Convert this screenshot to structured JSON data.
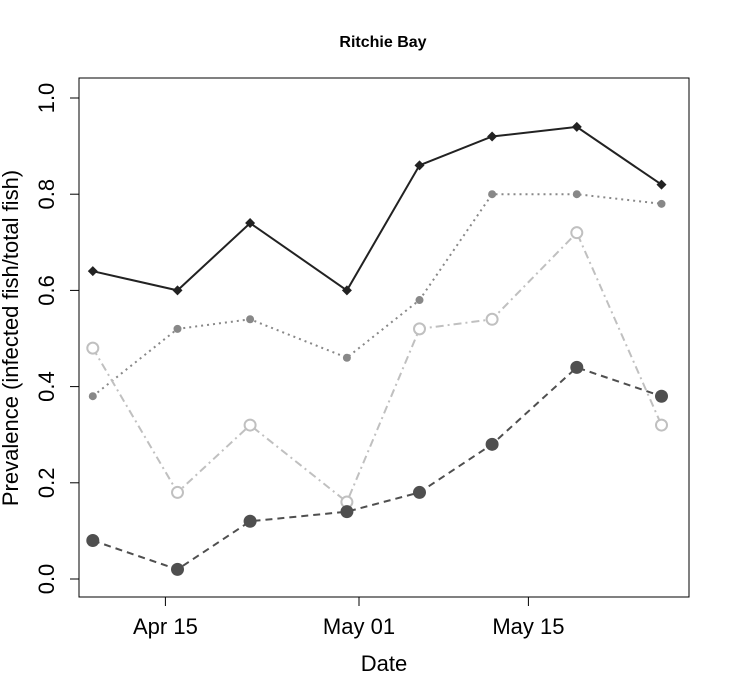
{
  "chart_data": {
    "type": "line",
    "title": "Ritchie Bay",
    "xlabel": "Date",
    "ylabel": "Prevalence (infected fish/total fish)",
    "ylim": [
      0.0,
      1.0
    ],
    "xlim": [
      "2013-04-07",
      "2013-05-29"
    ],
    "x_ticks": [
      {
        "date": "2013-04-15",
        "label": "Apr 15"
      },
      {
        "date": "2013-05-01",
        "label": "May 01"
      },
      {
        "date": "2013-05-15",
        "label": "May 15"
      }
    ],
    "y_ticks": [
      {
        "value": 0.0,
        "label": "0.0"
      },
      {
        "value": 0.2,
        "label": "0.2"
      },
      {
        "value": 0.4,
        "label": "0.4"
      },
      {
        "value": 0.6,
        "label": "0.6"
      },
      {
        "value": 0.8,
        "label": "0.8"
      },
      {
        "value": 1.0,
        "label": "1.0"
      }
    ],
    "grid": false,
    "x": [
      "2013-04-09",
      "2013-04-16",
      "2013-04-22",
      "2013-04-30",
      "2013-05-06",
      "2013-05-12",
      "2013-05-19",
      "2013-05-26"
    ],
    "series": [
      {
        "values": [
          0.64,
          0.6,
          0.74,
          0.6,
          0.86,
          0.92,
          0.94,
          0.82
        ],
        "color": "#222222",
        "dash": "solid",
        "marker": "diamond"
      },
      {
        "values": [
          0.38,
          0.52,
          0.54,
          0.46,
          0.58,
          0.8,
          0.8,
          0.78
        ],
        "color": "#888888",
        "dash": "dotted",
        "marker": "small-filled-circle"
      },
      {
        "values": [
          0.48,
          0.18,
          0.32,
          0.16,
          0.52,
          0.54,
          0.72,
          0.32
        ],
        "color": "#c0c0c0",
        "dash": "dash-dot",
        "marker": "open-circle"
      },
      {
        "values": [
          0.08,
          0.02,
          0.12,
          0.14,
          0.18,
          0.28,
          0.44,
          0.38
        ],
        "color": "#4f4f4f",
        "dash": "dashed",
        "marker": "large-filled-circle"
      }
    ]
  }
}
